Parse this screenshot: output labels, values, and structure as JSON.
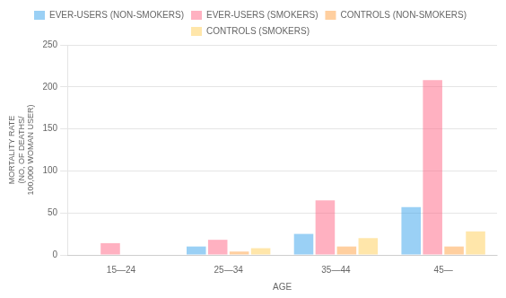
{
  "chart_data": {
    "type": "bar",
    "categories": [
      "15—24",
      "25—34",
      "35—44",
      "45—"
    ],
    "series": [
      {
        "name": "EVER-USERS (NON-SMOKERS)",
        "values": [
          0,
          10,
          25,
          57
        ]
      },
      {
        "name": "EVER-USERS (SMOKERS)",
        "values": [
          14,
          18,
          65,
          208
        ]
      },
      {
        "name": "CONTROLS (NON-SMOKERS)",
        "values": [
          0,
          4,
          10,
          10
        ]
      },
      {
        "name": "CONTROLS (SMOKERS)",
        "values": [
          0,
          8,
          20,
          28
        ]
      }
    ],
    "xlabel": "AGE",
    "ylabel": [
      "MORTALITY RATE",
      "(NO, OF DEATHS/",
      "100,000 WOMAN USER)"
    ],
    "ylim": [
      0,
      250
    ],
    "yticks": [
      0,
      50,
      100,
      150,
      200,
      250
    ],
    "grid": true,
    "legend": "top"
  }
}
